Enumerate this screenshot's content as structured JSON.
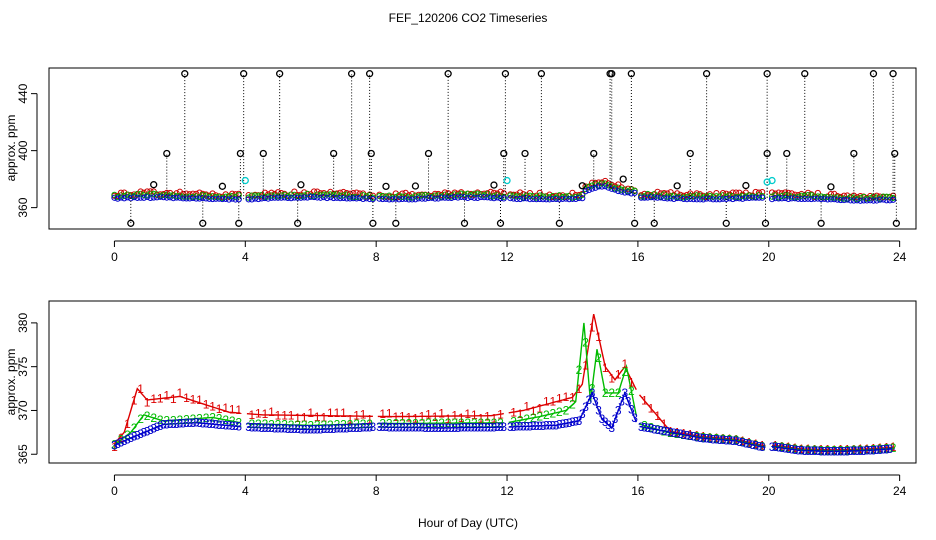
{
  "figure_title": "FEF_120206  CO2 Timeseries",
  "xlabel": "Hour of Day (UTC)",
  "chart_data": [
    {
      "type": "scatter",
      "panel": "top",
      "ylabel": "approx. ppm",
      "xlim": [
        -2,
        24.5
      ],
      "ylim": [
        345,
        458
      ],
      "xticks": [
        "0",
        "4",
        "8",
        "12",
        "16",
        "20",
        "24"
      ],
      "yticks": [
        "360",
        "400",
        "440"
      ],
      "colors": {
        "raw": "#000000",
        "s1": "#cc0000",
        "s2": "#00aa00",
        "s3": "#0000cc",
        "flag": "#00cccc"
      },
      "gaps": [
        [
          3.85,
          4.05
        ],
        [
          7.9,
          8.05
        ],
        [
          11.9,
          12.05
        ],
        [
          15.95,
          16.05
        ],
        [
          19.9,
          20.1
        ]
      ],
      "spikes_high_x": [
        2.15,
        3.95,
        5.05,
        7.25,
        7.8,
        10.2,
        11.95,
        13.05,
        15.15,
        15.2,
        15.8,
        18.1,
        19.95,
        21.1,
        23.2,
        23.8
      ],
      "spikes_mid_x": [
        1.6,
        3.85,
        4.55,
        6.7,
        7.85,
        9.6,
        11.9,
        12.55,
        14.65,
        17.6,
        19.95,
        20.55,
        22.6,
        23.85
      ],
      "spikes_low_x": [
        0.5,
        2.7,
        3.8,
        5.6,
        7.9,
        8.6,
        10.7,
        11.8,
        13.6,
        15.9,
        16.5,
        18.7,
        19.9,
        21.6,
        23.9
      ],
      "flag_points": [
        [
          4.0,
          379
        ],
        [
          12.0,
          379
        ],
        [
          19.95,
          378
        ],
        [
          20.1,
          379
        ]
      ],
      "spike_high_value": 454,
      "spike_mid_value": 398,
      "spike_low_value": 349
    },
    {
      "type": "scatter",
      "panel": "bottom",
      "ylabel": "approx. ppm",
      "xlim": [
        -2,
        24.5
      ],
      "ylim": [
        364,
        382.5
      ],
      "xticks": [
        "0",
        "4",
        "8",
        "12",
        "16",
        "20",
        "24"
      ],
      "yticks": [
        "365",
        "370",
        "375",
        "380"
      ],
      "series": [
        {
          "name": "1",
          "label": "1",
          "color": "#dd0000"
        },
        {
          "name": "2",
          "label": "2",
          "color": "#00bb00"
        },
        {
          "name": "3",
          "label": "3",
          "color": "#0000cc"
        }
      ],
      "gaps": [
        [
          3.85,
          4.05
        ],
        [
          7.9,
          8.05
        ],
        [
          11.9,
          12.05
        ],
        [
          15.95,
          16.05
        ],
        [
          19.9,
          20.1
        ]
      ],
      "s3_profile": [
        [
          0,
          366
        ],
        [
          0.6,
          367
        ],
        [
          1.5,
          368.4
        ],
        [
          2.5,
          368.6
        ],
        [
          4,
          368.1
        ],
        [
          6,
          367.8
        ],
        [
          8,
          368.1
        ],
        [
          10,
          368
        ],
        [
          12,
          368.1
        ],
        [
          13.5,
          368.3
        ],
        [
          14.2,
          368.8
        ],
        [
          14.6,
          372
        ],
        [
          14.9,
          369
        ],
        [
          15.2,
          368
        ],
        [
          15.6,
          372
        ],
        [
          16,
          368.2
        ],
        [
          17,
          367.5
        ],
        [
          18,
          366.8
        ],
        [
          19,
          366.5
        ],
        [
          19.8,
          365.8
        ],
        [
          20.2,
          365.8
        ],
        [
          21,
          365.4
        ],
        [
          22,
          365.3
        ],
        [
          23,
          365.4
        ],
        [
          23.8,
          365.6
        ]
      ],
      "s1_profile": [
        [
          0,
          366.2
        ],
        [
          0.3,
          367.5
        ],
        [
          0.7,
          372.5
        ],
        [
          1.0,
          371.2
        ],
        [
          2.0,
          371.6
        ],
        [
          3.5,
          369.8
        ],
        [
          4.5,
          369.5
        ],
        [
          8.5,
          369.3
        ],
        [
          11.5,
          369.4
        ],
        [
          12.5,
          370
        ],
        [
          13.5,
          371
        ],
        [
          14.0,
          371.5
        ],
        [
          14.3,
          373
        ],
        [
          14.65,
          381
        ],
        [
          15,
          375
        ],
        [
          15.3,
          373.5
        ],
        [
          15.6,
          375
        ],
        [
          16,
          372
        ],
        [
          17,
          367.6
        ],
        [
          18,
          367
        ],
        [
          19,
          366.7
        ],
        [
          19.8,
          366
        ],
        [
          20.2,
          366
        ],
        [
          21,
          365.6
        ],
        [
          22,
          365.5
        ],
        [
          23,
          365.6
        ],
        [
          23.8,
          365.8
        ]
      ],
      "s2_profile": [
        [
          0,
          366.1
        ],
        [
          0.5,
          367.5
        ],
        [
          0.9,
          369.5
        ],
        [
          1.5,
          368.8
        ],
        [
          3,
          369.2
        ],
        [
          4,
          368.5
        ],
        [
          6,
          368.3
        ],
        [
          8,
          368.5
        ],
        [
          12,
          368.6
        ],
        [
          13,
          369.3
        ],
        [
          13.8,
          370
        ],
        [
          14.1,
          371
        ],
        [
          14.35,
          380
        ],
        [
          14.55,
          371
        ],
        [
          14.75,
          377
        ],
        [
          15,
          372
        ],
        [
          15.4,
          372
        ],
        [
          15.65,
          375
        ],
        [
          16,
          368.5
        ],
        [
          17,
          367.4
        ],
        [
          18,
          366.9
        ],
        [
          19,
          366.6
        ],
        [
          19.8,
          365.9
        ],
        [
          20.2,
          365.9
        ],
        [
          21,
          365.5
        ],
        [
          22,
          365.4
        ],
        [
          23,
          365.5
        ],
        [
          23.8,
          365.7
        ]
      ]
    }
  ]
}
